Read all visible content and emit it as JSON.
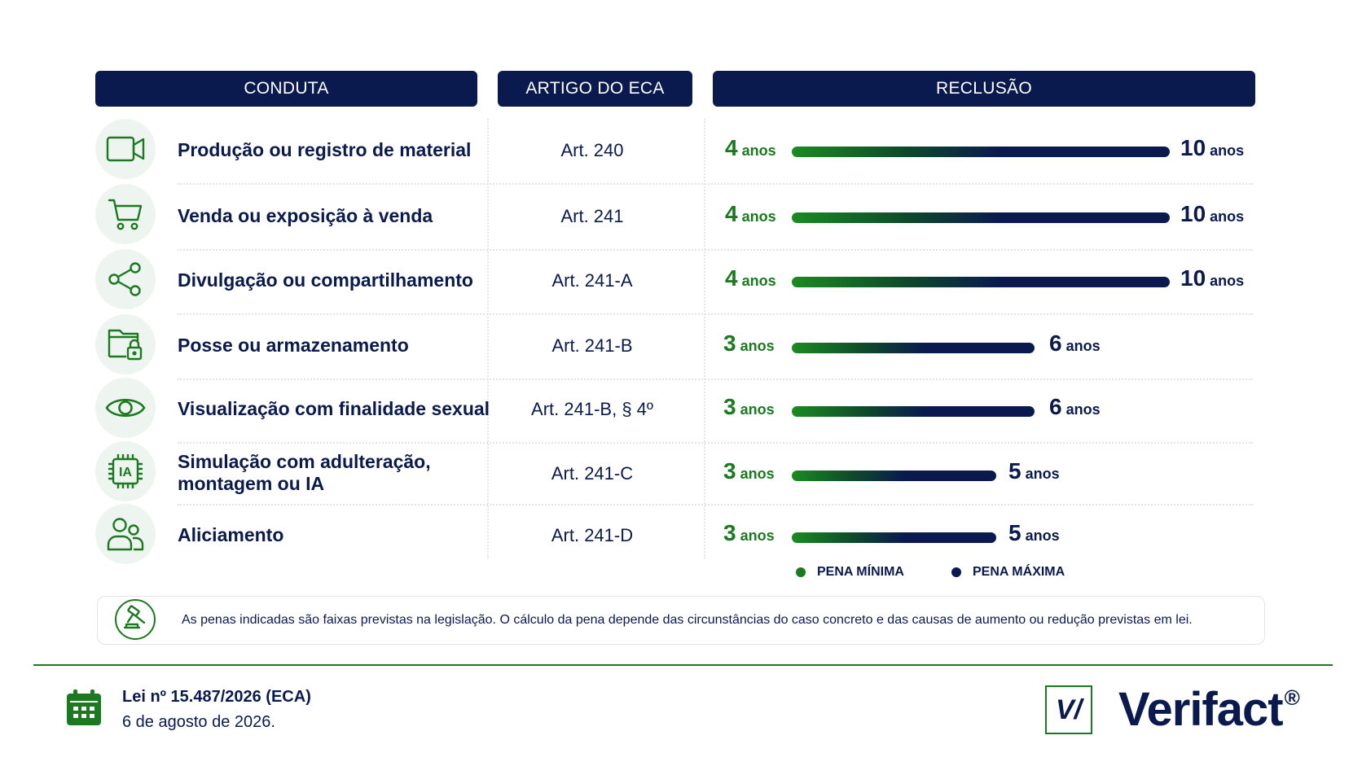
{
  "headers": {
    "conduta": "CONDUTA",
    "artigo": "ARTIGO DO ECA",
    "reclusao": "RECLUSÃO"
  },
  "rows": [
    {
      "icon": "video-camera-icon",
      "conduta_lines": [
        "Produção ou registro de material"
      ],
      "artigo": "Art. 240",
      "min": "4",
      "max": "10",
      "unit": "anos"
    },
    {
      "icon": "shopping-cart-icon",
      "conduta_lines": [
        "Venda ou exposição à venda"
      ],
      "artigo": "Art. 241",
      "min": "4",
      "max": "10",
      "unit": "anos"
    },
    {
      "icon": "share-icon",
      "conduta_lines": [
        "Divulgação ou compartilhamento"
      ],
      "artigo": "Art. 241-A",
      "min": "4",
      "max": "10",
      "unit": "anos"
    },
    {
      "icon": "locked-folder-icon",
      "conduta_lines": [
        "Posse ou armazenamento"
      ],
      "artigo": "Art. 241-B",
      "min": "3",
      "max": "6",
      "unit": "anos"
    },
    {
      "icon": "eye-icon",
      "conduta_lines": [
        "Visualização com finalidade sexual"
      ],
      "artigo": "Art. 241-B, § 4º",
      "min": "3",
      "max": "6",
      "unit": "anos"
    },
    {
      "icon": "ai-chip-icon",
      "conduta_lines": [
        "Simulação com adulteração,",
        "montagem ou IA"
      ],
      "artigo": "Art. 241-C",
      "min": "3",
      "max": "5",
      "unit": "anos"
    },
    {
      "icon": "users-icon",
      "conduta_lines": [
        "Aliciamento"
      ],
      "artigo": "Art. 241-D",
      "min": "3",
      "max": "5",
      "unit": "anos"
    }
  ],
  "ai_chip_text": "IA",
  "legend": {
    "min_label": "PENA MÍNIMA",
    "max_label": "PENA MÁXIMA",
    "min_color": "#1b7a1f",
    "max_color": "#0a1a4f"
  },
  "note": {
    "icon": "gavel-icon",
    "text": "As penas indicadas são faixas previstas na legislação. O cálculo da pena depende das circunstâncias do caso concreto e das causas de aumento ou redução previstas em lei."
  },
  "footer": {
    "icon": "calendar-icon",
    "law": "Lei nº 15.487/2026 (ECA)",
    "date": "6 de agosto de 2026."
  },
  "brand": {
    "icon": "verifact-logo-icon",
    "logo_mark": "V/",
    "name": "Verifact",
    "registered": "®"
  }
}
